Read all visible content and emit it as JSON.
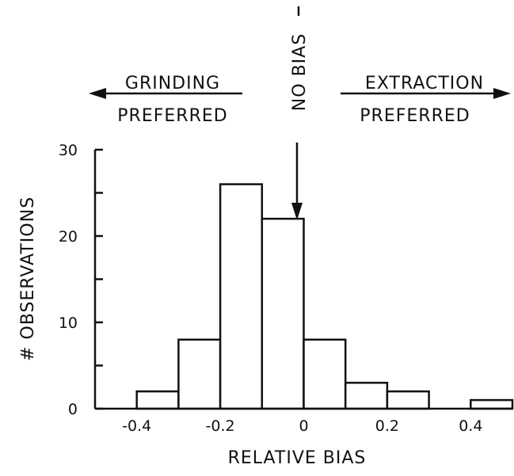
{
  "chart_data": {
    "type": "bar",
    "subtype": "histogram",
    "xlabel": "RELATIVE BIAS",
    "ylabel": "# OBSERVATIONS",
    "bins": [
      {
        "x0": -0.5,
        "x1": -0.4,
        "count": 0
      },
      {
        "x0": -0.4,
        "x1": -0.3,
        "count": 2
      },
      {
        "x0": -0.3,
        "x1": -0.2,
        "count": 8
      },
      {
        "x0": -0.2,
        "x1": -0.1,
        "count": 26
      },
      {
        "x0": -0.1,
        "x1": 0.0,
        "count": 22
      },
      {
        "x0": 0.0,
        "x1": 0.1,
        "count": 8
      },
      {
        "x0": 0.1,
        "x1": 0.2,
        "count": 3
      },
      {
        "x0": 0.2,
        "x1": 0.3,
        "count": 2
      },
      {
        "x0": 0.3,
        "x1": 0.4,
        "count": 0
      },
      {
        "x0": 0.4,
        "x1": 0.5,
        "count": 1
      }
    ],
    "xlim": [
      -0.5,
      0.5
    ],
    "ylim": [
      0,
      30
    ],
    "x_ticks": [
      -0.4,
      -0.2,
      0,
      0.2,
      0.4
    ],
    "x_tick_labels": [
      "-0.4",
      "-0.2",
      "0",
      "0.2",
      "0.4"
    ],
    "y_ticks": [
      0,
      5,
      10,
      15,
      20,
      25,
      30
    ],
    "y_tick_labels": [
      "0",
      "",
      "10",
      "",
      "20",
      "",
      "30"
    ],
    "grid": false,
    "annotations": {
      "left_line1": "GRINDING",
      "left_line2": "PREFERRED",
      "center": "NO BIAS",
      "right_line1": "EXTRACTION",
      "right_line2": "PREFERRED"
    }
  }
}
